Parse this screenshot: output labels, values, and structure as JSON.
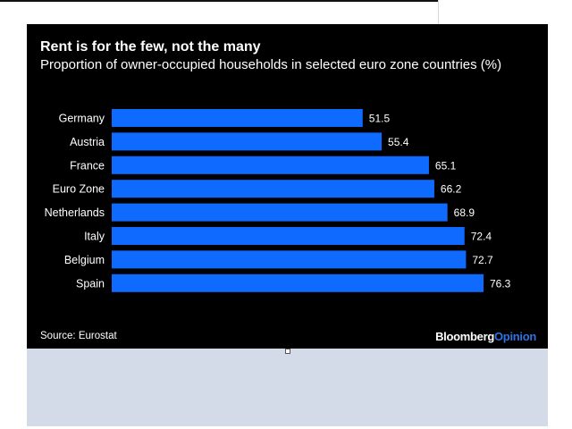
{
  "chart_data": {
    "type": "bar",
    "orientation": "horizontal",
    "title": "Rent is for the few, not the many",
    "subtitle": "Proportion of owner-occupied households in selected euro zone countries (%)",
    "categories": [
      "Germany",
      "Austria",
      "France",
      "Euro Zone",
      "Netherlands",
      "Italy",
      "Belgium",
      "Spain"
    ],
    "values": [
      51.5,
      55.4,
      65.1,
      66.2,
      68.9,
      72.4,
      72.7,
      76.3
    ],
    "value_labels": [
      "51.5",
      "55.4",
      "65.1",
      "66.2",
      "68.9",
      "72.4",
      "72.7",
      "76.3"
    ],
    "xlabel": "",
    "ylabel": "",
    "xlim": [
      0,
      78
    ],
    "grid": false,
    "bar_color": "#0f6bff",
    "source": "Source: Eurostat"
  },
  "branding": {
    "part1": "Bloomberg",
    "part2": "Opinion",
    "accent": "#2f73e0"
  }
}
